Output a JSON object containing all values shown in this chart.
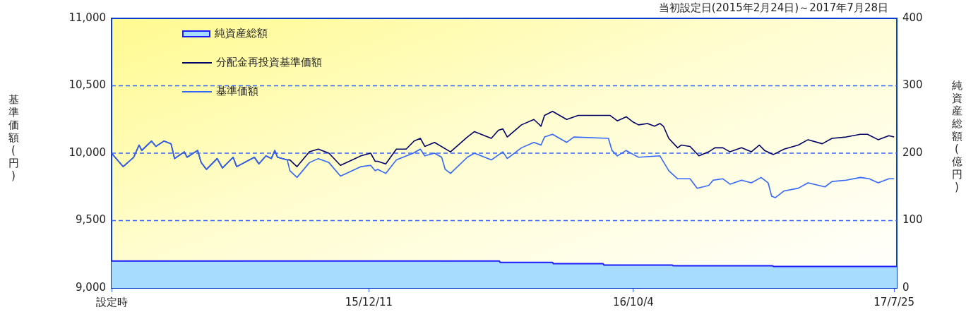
{
  "chart_data": {
    "type": "line",
    "title": "当初設定日(2015年2月24日)～2017年7月28日",
    "ylabel": "基準価額(円)",
    "y2label": "純資産総額(億円)",
    "xlim": [
      "2015-02-24",
      "2017-07-28"
    ],
    "xticks": [
      {
        "value": "2015-02-24",
        "label": "設定時"
      },
      {
        "value": "2015-12-11",
        "label": "15/12/11"
      },
      {
        "value": "2016-10-04",
        "label": "16/10/4"
      },
      {
        "value": "2017-07-25",
        "label": "17/7/25"
      }
    ],
    "ylim": [
      9000,
      11000
    ],
    "yticks": [
      {
        "value": 9000,
        "label": "9,000"
      },
      {
        "value": 9500,
        "label": "9,500"
      },
      {
        "value": 10000,
        "label": "10,000"
      },
      {
        "value": 10500,
        "label": "10,500"
      },
      {
        "value": 11000,
        "label": "11,000"
      }
    ],
    "y2lim": [
      0,
      400
    ],
    "y2ticks": [
      0,
      100,
      200,
      300,
      400
    ],
    "grid": "y",
    "legend": "top left",
    "line_style": "solid",
    "series": [
      {
        "name": "純資産総額",
        "type": "area",
        "axis": "y2",
        "color": "#a8dcff",
        "x": [
          "2015-02-24",
          "2016-05-06",
          "2016-05-07",
          "2016-07-05",
          "2016-07-06",
          "2016-08-31",
          "2016-09-01",
          "2016-11-17",
          "2016-11-18",
          "2017-03-10",
          "2017-03-11",
          "2017-07-28"
        ],
        "values": [
          40,
          40,
          38,
          38,
          36,
          36,
          34,
          34,
          33,
          33,
          32,
          32
        ]
      },
      {
        "name": "分配金再投資基準価額",
        "color": "#000066",
        "x": [
          "2015-02-24",
          "2015-03-09",
          "2015-03-21",
          "2015-03-27",
          "2015-03-30",
          "2015-04-10",
          "2015-04-15",
          "2015-04-24",
          "2015-05-02",
          "2015-05-06",
          "2015-05-17",
          "2015-05-20",
          "2015-06-01",
          "2015-06-05",
          "2015-06-11",
          "2015-06-23",
          "2015-06-29",
          "2015-07-11",
          "2015-07-15",
          "2015-08-04",
          "2015-08-09",
          "2015-08-17",
          "2015-08-23",
          "2015-08-27",
          "2015-08-30",
          "2015-09-10",
          "2015-09-13",
          "2015-09-21",
          "2015-10-05",
          "2015-10-15",
          "2015-10-27",
          "2015-11-09",
          "2015-12-02",
          "2015-12-13",
          "2015-12-18",
          "2015-12-21",
          "2015-12-30",
          "2016-01-11",
          "2016-01-22",
          "2016-01-31",
          "2016-02-07",
          "2016-02-12",
          "2016-02-23",
          "2016-03-12",
          "2016-03-31",
          "2016-04-08",
          "2016-04-27",
          "2016-05-05",
          "2016-05-10",
          "2016-05-15",
          "2016-05-31",
          "2016-06-14",
          "2016-06-22",
          "2016-06-26",
          "2016-07-05",
          "2016-07-21",
          "2016-08-03",
          "2016-08-31",
          "2016-09-08",
          "2016-09-16",
          "2016-09-26",
          "2016-10-04",
          "2016-10-10",
          "2016-10-20",
          "2016-10-28",
          "2016-11-03",
          "2016-11-07",
          "2016-11-13",
          "2016-11-23",
          "2016-11-27",
          "2016-12-07",
          "2016-12-17",
          "2016-12-28",
          "2017-01-04",
          "2017-01-13",
          "2017-01-21",
          "2017-02-03",
          "2017-02-14",
          "2017-02-23",
          "2017-03-01",
          "2017-03-11",
          "2017-03-23",
          "2017-04-08",
          "2017-04-19",
          "2017-05-05",
          "2017-05-16",
          "2017-06-01",
          "2017-06-17",
          "2017-06-25",
          "2017-07-07",
          "2017-07-19",
          "2017-07-25"
        ],
        "values": [
          10000,
          9900,
          9970,
          10060,
          10020,
          10090,
          10050,
          10090,
          10070,
          9960,
          10010,
          9970,
          10020,
          9930,
          9880,
          9960,
          9890,
          9970,
          9900,
          9970,
          9920,
          9980,
          9960,
          10020,
          9970,
          9950,
          9950,
          9900,
          10010,
          10030,
          10000,
          9910,
          9980,
          10000,
          9940,
          9940,
          9920,
          10030,
          10030,
          10090,
          10110,
          10050,
          10080,
          10010,
          10120,
          10160,
          10110,
          10170,
          10180,
          10120,
          10210,
          10250,
          10200,
          10280,
          10310,
          10250,
          10280,
          10280,
          10280,
          10240,
          10270,
          10230,
          10210,
          10220,
          10200,
          10220,
          10200,
          10110,
          10040,
          10060,
          10050,
          9980,
          10010,
          10040,
          10040,
          10010,
          10040,
          10010,
          10060,
          10020,
          9990,
          10030,
          10060,
          10100,
          10070,
          10110,
          10120,
          10140,
          10140,
          10100,
          10130,
          10120
        ]
      },
      {
        "name": "基準価額",
        "color": "#3366ff",
        "x": [
          "2015-02-24",
          "2015-03-09",
          "2015-03-21",
          "2015-03-27",
          "2015-03-30",
          "2015-04-10",
          "2015-04-15",
          "2015-04-24",
          "2015-05-02",
          "2015-05-06",
          "2015-05-17",
          "2015-05-20",
          "2015-06-01",
          "2015-06-05",
          "2015-06-11",
          "2015-06-23",
          "2015-06-29",
          "2015-07-11",
          "2015-07-15",
          "2015-08-04",
          "2015-08-09",
          "2015-08-17",
          "2015-08-23",
          "2015-08-27",
          "2015-08-30",
          "2015-09-10",
          "2015-09-13",
          "2015-09-21",
          "2015-10-05",
          "2015-10-15",
          "2015-10-27",
          "2015-11-09",
          "2015-12-02",
          "2015-12-13",
          "2015-12-18",
          "2015-12-21",
          "2015-12-30",
          "2016-01-11",
          "2016-01-30",
          "2016-02-07",
          "2016-02-12",
          "2016-02-23",
          "2016-03-02",
          "2016-03-06",
          "2016-03-12",
          "2016-03-31",
          "2016-04-08",
          "2016-04-27",
          "2016-05-10",
          "2016-05-15",
          "2016-05-31",
          "2016-06-14",
          "2016-06-22",
          "2016-06-26",
          "2016-07-05",
          "2016-07-21",
          "2016-07-29",
          "2016-09-06",
          "2016-09-10",
          "2016-09-16",
          "2016-09-26",
          "2016-10-04",
          "2016-10-10",
          "2016-11-03",
          "2016-11-13",
          "2016-11-23",
          "2016-12-07",
          "2016-12-15",
          "2016-12-28",
          "2017-01-02",
          "2017-01-13",
          "2017-01-21",
          "2017-02-03",
          "2017-02-14",
          "2017-02-25",
          "2017-03-05",
          "2017-03-09",
          "2017-03-13",
          "2017-03-23",
          "2017-04-08",
          "2017-04-19",
          "2017-05-08",
          "2017-05-16",
          "2017-06-01",
          "2017-06-17",
          "2017-06-27",
          "2017-07-07",
          "2017-07-19",
          "2017-07-25"
        ],
        "values": [
          10000,
          9900,
          9970,
          10060,
          10020,
          10090,
          10050,
          10090,
          10070,
          9960,
          10010,
          9970,
          10020,
          9930,
          9880,
          9960,
          9890,
          9970,
          9900,
          9970,
          9920,
          9980,
          9960,
          10020,
          9970,
          9950,
          9870,
          9820,
          9930,
          9960,
          9930,
          9830,
          9900,
          9910,
          9870,
          9880,
          9850,
          9950,
          10000,
          10030,
          9980,
          10000,
          9970,
          9880,
          9850,
          9970,
          10000,
          9950,
          10010,
          9960,
          10040,
          10080,
          10060,
          10120,
          10140,
          10080,
          10120,
          10110,
          10020,
          9980,
          10020,
          9990,
          9970,
          9980,
          9870,
          9810,
          9810,
          9740,
          9760,
          9800,
          9810,
          9770,
          9800,
          9780,
          9820,
          9780,
          9680,
          9670,
          9720,
          9740,
          9780,
          9750,
          9790,
          9800,
          9820,
          9810,
          9780,
          9810,
          9810
        ]
      }
    ]
  }
}
